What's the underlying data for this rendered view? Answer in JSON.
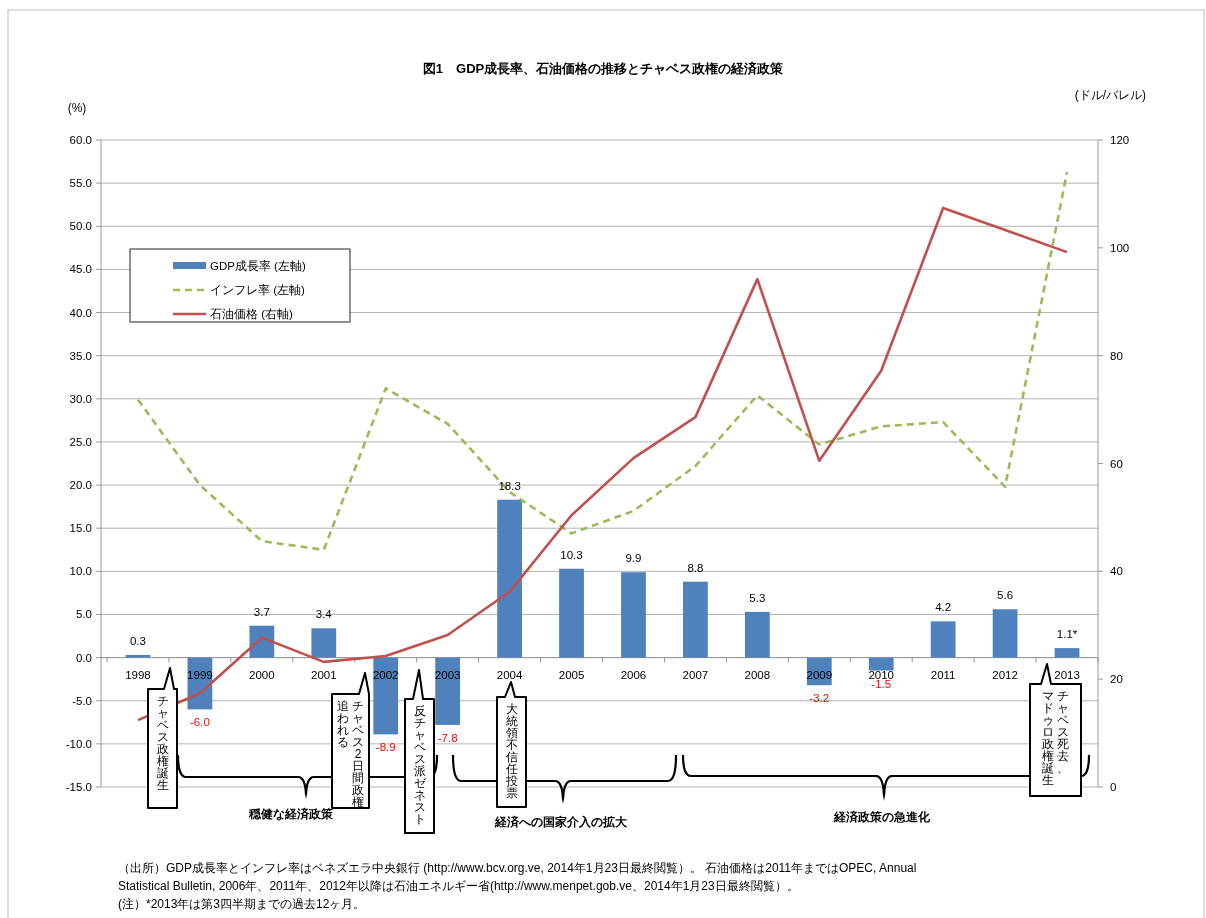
{
  "chart_data": {
    "type": "bar",
    "title": "図1　GDP成長率、石油価格の推移とチャベス政権の経済政策",
    "ylabel": "(%)",
    "y2label": "(ドル/バレル)",
    "categories": [
      "1998",
      "1999",
      "2000",
      "2001",
      "2002",
      "2003",
      "2004",
      "2005",
      "2006",
      "2007",
      "2008",
      "2009",
      "2010",
      "2011",
      "2012",
      "2013"
    ],
    "series": [
      {
        "name": "GDP成長率 (左軸)",
        "color": "#4f81bd",
        "values": [
          0.3,
          -6.0,
          3.7,
          3.4,
          -8.9,
          -7.8,
          18.3,
          10.3,
          9.9,
          8.8,
          5.3,
          -3.2,
          -1.5,
          4.2,
          5.6,
          1.1
        ],
        "value_labels": [
          "0.3",
          "-6.0",
          "3.7",
          "3.4",
          "-8.9",
          "-7.8",
          "18.3",
          "10.3",
          "9.9",
          "8.8",
          "5.3",
          "-3.2",
          "-1.5",
          "4.2",
          "5.6",
          "1.1*"
        ]
      },
      {
        "name": "インフレ率 (左軸)",
        "type": "line",
        "color": "#9bbb59",
        "line_style": "dashed",
        "values": [
          29.9,
          20.0,
          13.5,
          12.5,
          31.2,
          27.1,
          19.2,
          14.4,
          17.0,
          22.2,
          30.4,
          24.7,
          26.8,
          27.3,
          19.8,
          56.3
        ]
      },
      {
        "name": "石油価格 (右軸)",
        "type": "line",
        "color": "#c0504d",
        "line_style": "solid",
        "axis": "y2",
        "values": [
          12.4,
          17.4,
          27.7,
          23.2,
          24.3,
          28.2,
          36.2,
          50.4,
          61.0,
          68.6,
          94.2,
          60.5,
          77.2,
          107.4,
          103.3,
          99.2
        ]
      }
    ],
    "ylim": [
      -15,
      60
    ],
    "yticks": [
      {
        "value": -15,
        "label": "-15.0"
      },
      {
        "value": -10,
        "label": "-10.0"
      },
      {
        "value": -5,
        "label": "-5.0"
      },
      {
        "value": 0,
        "label": "0.0"
      },
      {
        "value": 5,
        "label": "5.0"
      },
      {
        "value": 10,
        "label": "10.0"
      },
      {
        "value": 15,
        "label": "15.0"
      },
      {
        "value": 20,
        "label": "20.0"
      },
      {
        "value": 25,
        "label": "25.0"
      },
      {
        "value": 30,
        "label": "30.0"
      },
      {
        "value": 35,
        "label": "35.0"
      },
      {
        "value": 40,
        "label": "40.0"
      },
      {
        "value": 45,
        "label": "45.0"
      },
      {
        "value": 50,
        "label": "50.0"
      },
      {
        "value": 55,
        "label": "55.0"
      },
      {
        "value": 60,
        "label": "60.0"
      }
    ],
    "y2lim": [
      0,
      120
    ],
    "y2ticks": [
      0,
      20,
      40,
      60,
      80,
      100,
      120
    ],
    "grid": "y",
    "legend": "top left",
    "annotations": [
      "チャベス政権誕生",
      "チャベス2日間政権",
      "追われる",
      "反チャベス派ゼネスト",
      "大統領不信任投票",
      "チャベス死去、",
      "マドゥロ政権誕生",
      "穏健な経済政策",
      "経済への国家介入の拡大",
      "経済政策の急進化",
      "（出所）GDP成長率とインフレ率はベネズエラ中央銀行 (http://www.bcv.org.ve, 2014年1月23日最終閲覧）。 石油価格は2011年まではOPEC, Annual",
      "Statistical Bulletin, 2006年、2011年、2012年以降は石油エネルギー省(http://www.menpet.gob.ve、2014年1月23日最終閲覧）。",
      "(注）*2013年は第3四半期までの過去12ヶ月。"
    ]
  }
}
